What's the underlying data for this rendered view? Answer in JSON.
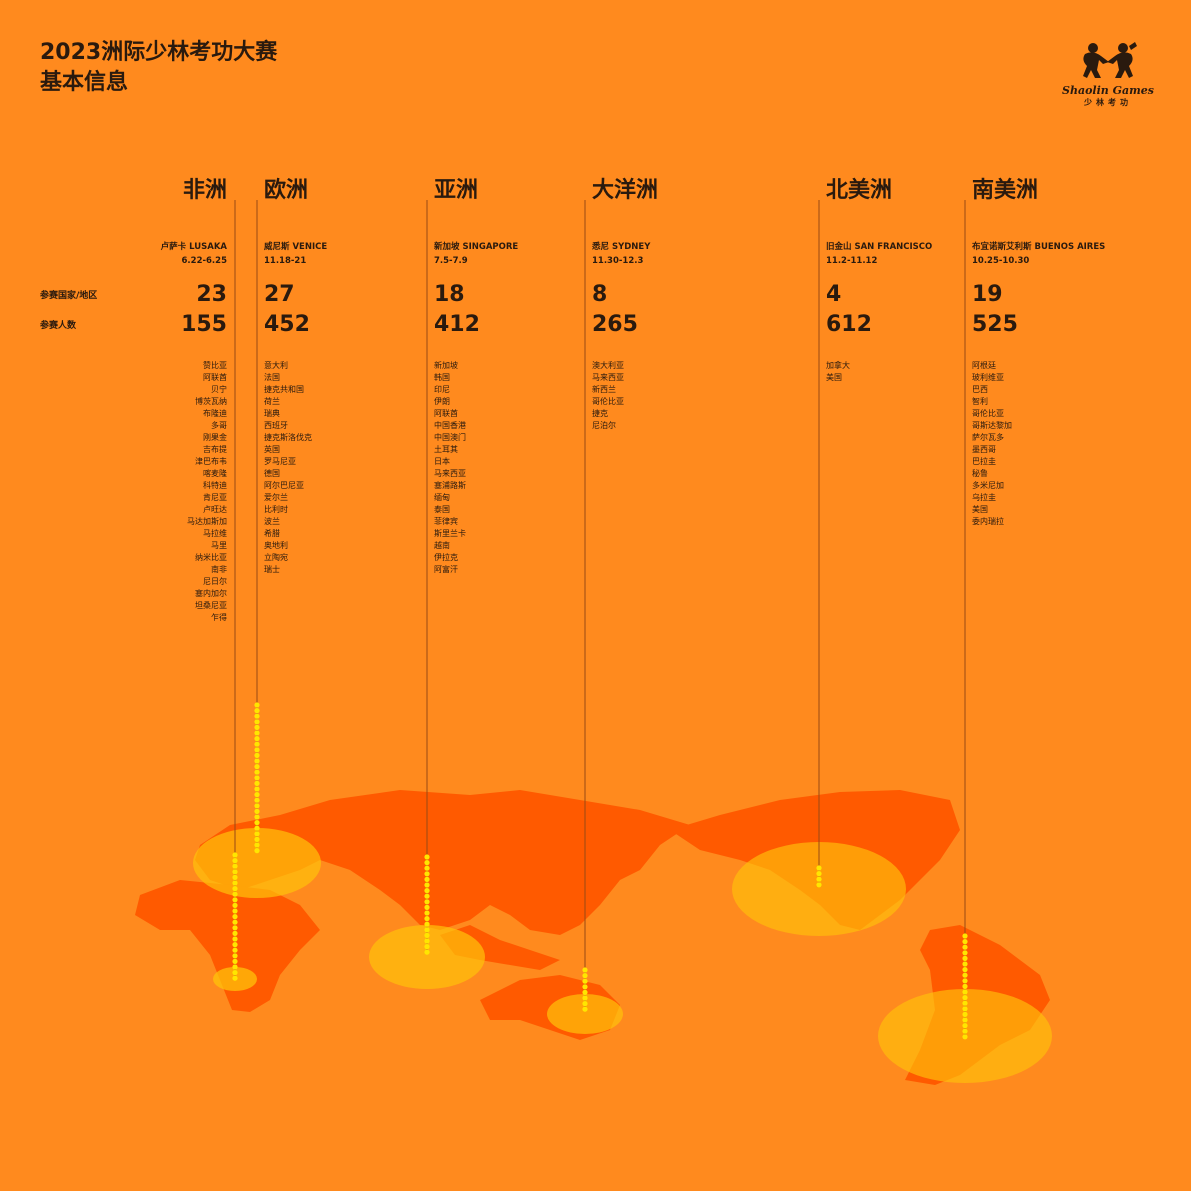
{
  "title_line1": "2023洲际少林考功大赛",
  "title_line2": "基本信息",
  "logo": {
    "en": "Shaolin Games",
    "cn": "少林考功"
  },
  "row_labels": {
    "countries": "参赛国家/地区",
    "participants": "参赛人数"
  },
  "colors": {
    "background": "#FF8A1E",
    "land": "#FF5A00",
    "highlight": "#FFC20A",
    "dots": "#FFE600"
  },
  "continents": [
    {
      "name": "非洲",
      "city": "卢萨卡 LUSAKA",
      "date": "6.22-6.25",
      "countries": 23,
      "participants": 155,
      "list": [
        "赞比亚",
        "阿联酋",
        "贝宁",
        "博茨瓦纳",
        "布隆迪",
        "多哥",
        "刚果金",
        "吉布提",
        "津巴布韦",
        "喀麦隆",
        "科特迪",
        "肯尼亚",
        "卢旺达",
        "马达加斯加",
        "马拉维",
        "马里",
        "纳米比亚",
        "南非",
        "尼日尔",
        "塞内加尔",
        "坦桑尼亚",
        "乍得"
      ]
    },
    {
      "name": "欧洲",
      "city": "威尼斯 VENICE",
      "date": "11.18-21",
      "countries": 27,
      "participants": 452,
      "list": [
        "意大利",
        "法国",
        "捷克共和国",
        "荷兰",
        "瑞典",
        "西班牙",
        "捷克斯洛伐克",
        "英国",
        "罗马尼亚",
        "德国",
        "阿尔巴尼亚",
        "爱尔兰",
        "比利时",
        "波兰",
        "希腊",
        "奥地利",
        "立陶宛",
        "瑞士"
      ]
    },
    {
      "name": "亚洲",
      "city": "新加坡 SINGAPORE",
      "date": "7.5-7.9",
      "countries": 18,
      "participants": 412,
      "list": [
        "新加坡",
        "韩国",
        "印尼",
        "伊朗",
        "阿联酋",
        "中国香港",
        "中国澳门",
        "土耳其",
        "日本",
        "马来西亚",
        "塞浦路斯",
        "缅甸",
        "泰国",
        "菲律宾",
        "斯里兰卡",
        "越南",
        "伊拉克",
        "阿富汗"
      ]
    },
    {
      "name": "大洋洲",
      "city": "悉尼 SYDNEY",
      "date": "11.30-12.3",
      "countries": 8,
      "participants": 265,
      "list": [
        "澳大利亚",
        "马来西亚",
        "新西兰",
        "哥伦比亚",
        "捷克",
        "尼泊尔"
      ]
    },
    {
      "name": "北美洲",
      "city": "旧金山 SAN FRANCISCO",
      "date": "11.2-11.12",
      "countries": 4,
      "participants": 612,
      "list": [
        "加拿大",
        "美国"
      ]
    },
    {
      "name": "南美洲",
      "city": "布宜诺斯艾利斯 BUENOS AIRES",
      "date": "10.25-10.30",
      "countries": 19,
      "participants": 525,
      "list": [
        "阿根廷",
        "玻利维亚",
        "巴西",
        "智利",
        "哥伦比亚",
        "哥斯达黎加",
        "萨尔瓦多",
        "墨西哥",
        "巴拉圭",
        "秘鲁",
        "多米尼加",
        "乌拉圭",
        "美国",
        "委内瑞拉"
      ]
    }
  ]
}
